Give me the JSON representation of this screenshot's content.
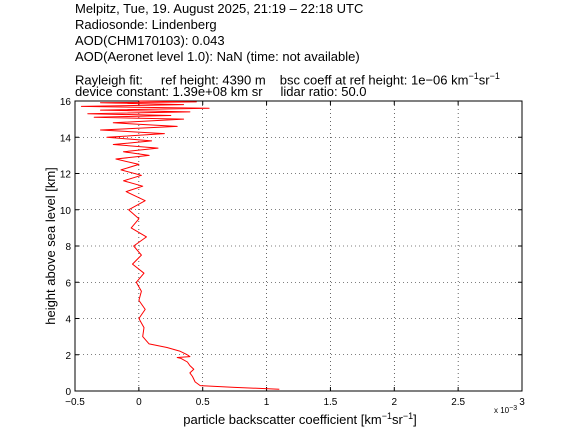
{
  "header": {
    "line1": "Melpitz, Tue, 19. August 2025, 21:19 – 22:18 UTC",
    "line2": "Radiosonde: Lindenberg",
    "line3": "AOD(CHM170103): 0.043",
    "line4": "AOD(Aeronet level 1.0): NaN   (time: not available)",
    "rayleigh_fit": "Rayleigh fit:",
    "ref_height": "ref height: 4390 m",
    "bsc_coeff_prefix": "bsc coeff at ref height: 1e−06 km",
    "bsc_unit_sup1": "−1",
    "bsc_unit_mid": "sr",
    "bsc_unit_sup2": "−1",
    "device_constant": "device constant: 1.39e+08 km sr",
    "lidar_ratio": "lidar ratio: 50.0"
  },
  "chart_data": {
    "type": "line",
    "xlabel_main": "particle backscatter coefficient [km",
    "xlabel_sup1": "−1",
    "xlabel_mid": "sr",
    "xlabel_sup2": "−1",
    "xlabel_end": "]",
    "ylabel": "height above sea level [km]",
    "x_exponent_label": "x 10",
    "x_exponent_power": "−3",
    "xlim": [
      -0.5,
      3
    ],
    "ylim": [
      0,
      16
    ],
    "x_ticks": [
      -0.5,
      0,
      0.5,
      1,
      1.5,
      2,
      2.5,
      3
    ],
    "x_tick_labels": [
      "−0.5",
      "0",
      "0.5",
      "1",
      "1.5",
      "2",
      "2.5",
      "3"
    ],
    "y_ticks": [
      0,
      2,
      4,
      6,
      8,
      10,
      12,
      14,
      16
    ],
    "y_tick_labels": [
      "0",
      "2",
      "4",
      "6",
      "8",
      "10",
      "12",
      "14",
      "16"
    ],
    "grid": true,
    "line_color": "#ff0000",
    "series": [
      {
        "x": [
          1.1,
          0.75,
          0.48,
          0.44,
          0.42,
          0.4,
          0.43,
          0.4,
          0.38,
          0.33,
          0.3,
          0.4,
          0.38,
          0.32,
          0.22,
          0.08,
          0.03,
          0.04,
          0.0,
          0.05,
          0.0,
          0.02,
          -0.02,
          0.04,
          -0.05,
          0.02,
          -0.04,
          0.06,
          -0.06,
          0.0,
          -0.08,
          0.05,
          -0.1,
          0.03,
          -0.12,
          0.02,
          -0.14,
          0.0,
          -0.18,
          0.08,
          -0.12,
          0.15,
          -0.2,
          0.1,
          -0.25,
          0.2,
          -0.3,
          0.3,
          -0.2,
          0.35,
          -0.35,
          0.25,
          -0.4,
          0.4,
          -0.3,
          0.55,
          -0.45,
          0.35,
          -0.3,
          0.45,
          0.0
        ],
        "y": [
          0.1,
          0.2,
          0.3,
          0.5,
          0.8,
          1.0,
          1.2,
          1.4,
          1.6,
          1.8,
          1.85,
          1.9,
          2.0,
          2.2,
          2.4,
          2.6,
          3.0,
          3.5,
          4.0,
          4.5,
          5.0,
          5.5,
          6.0,
          6.5,
          7.0,
          7.5,
          8.0,
          8.5,
          9.0,
          9.5,
          10.0,
          10.5,
          11.0,
          11.3,
          11.6,
          11.9,
          12.2,
          12.5,
          12.8,
          13.0,
          13.2,
          13.4,
          13.6,
          13.8,
          14.0,
          14.2,
          14.4,
          14.6,
          14.8,
          15.0,
          15.1,
          15.2,
          15.3,
          15.4,
          15.5,
          15.6,
          15.7,
          15.8,
          15.9,
          15.95,
          16.0
        ]
      }
    ]
  }
}
